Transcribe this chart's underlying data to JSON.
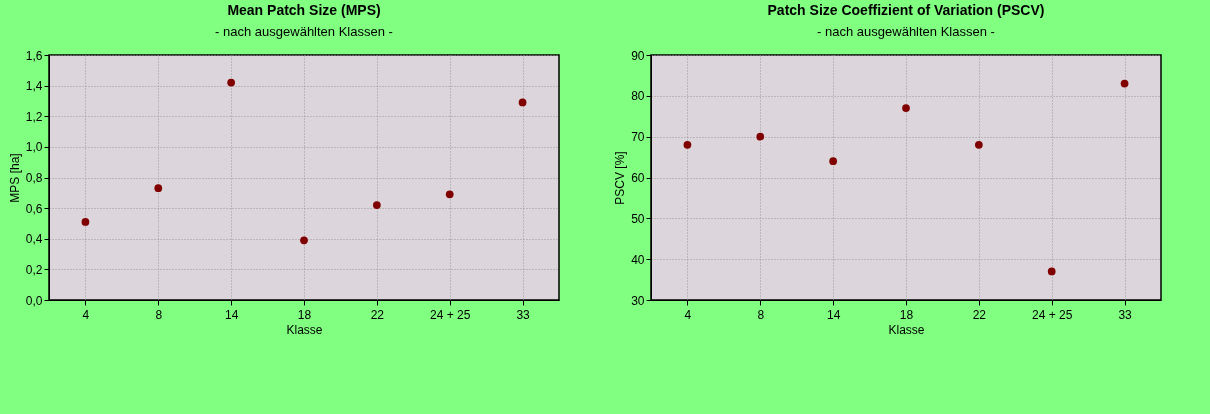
{
  "chart_data": [
    {
      "type": "scatter",
      "title": "Mean Patch Size (MPS)",
      "subtitle": "- nach ausgewählten Klassen -",
      "xlabel": "Klasse",
      "ylabel": "MPS [ha]",
      "categories": [
        "4",
        "8",
        "14",
        "18",
        "22",
        "24 + 25",
        "33"
      ],
      "series": [
        {
          "color": "#800000",
          "values": [
            0.51,
            0.73,
            1.42,
            0.39,
            0.62,
            0.69,
            1.29
          ]
        }
      ],
      "ylim": [
        0,
        1.6
      ],
      "yticks": [
        {
          "value": 0,
          "label": "0,0"
        },
        {
          "value": 0.2,
          "label": "0,2"
        },
        {
          "value": 0.4,
          "label": "0,4"
        },
        {
          "value": 0.6,
          "label": "0,6"
        },
        {
          "value": 0.8,
          "label": "0,8"
        },
        {
          "value": 1,
          "label": "1,0"
        },
        {
          "value": 1.2,
          "label": "1,2"
        },
        {
          "value": 1.4,
          "label": "1,4"
        },
        {
          "value": 1.6,
          "label": "1,6"
        }
      ],
      "grid": true,
      "marker": "circle"
    },
    {
      "type": "scatter",
      "title": "Patch Size Coeffizient of Variation (PSCV)",
      "subtitle": "- nach ausgewählten Klassen -",
      "xlabel": "Klasse",
      "ylabel": "PSCV [%]",
      "categories": [
        "4",
        "8",
        "14",
        "18",
        "22",
        "24 + 25",
        "33"
      ],
      "series": [
        {
          "color": "#800000",
          "values": [
            68,
            70,
            64,
            77,
            68,
            37,
            83
          ]
        }
      ],
      "ylim": [
        30,
        90
      ],
      "yticks": [
        30,
        40,
        50,
        60,
        70,
        80,
        90
      ],
      "grid": true,
      "marker": "circle"
    }
  ]
}
